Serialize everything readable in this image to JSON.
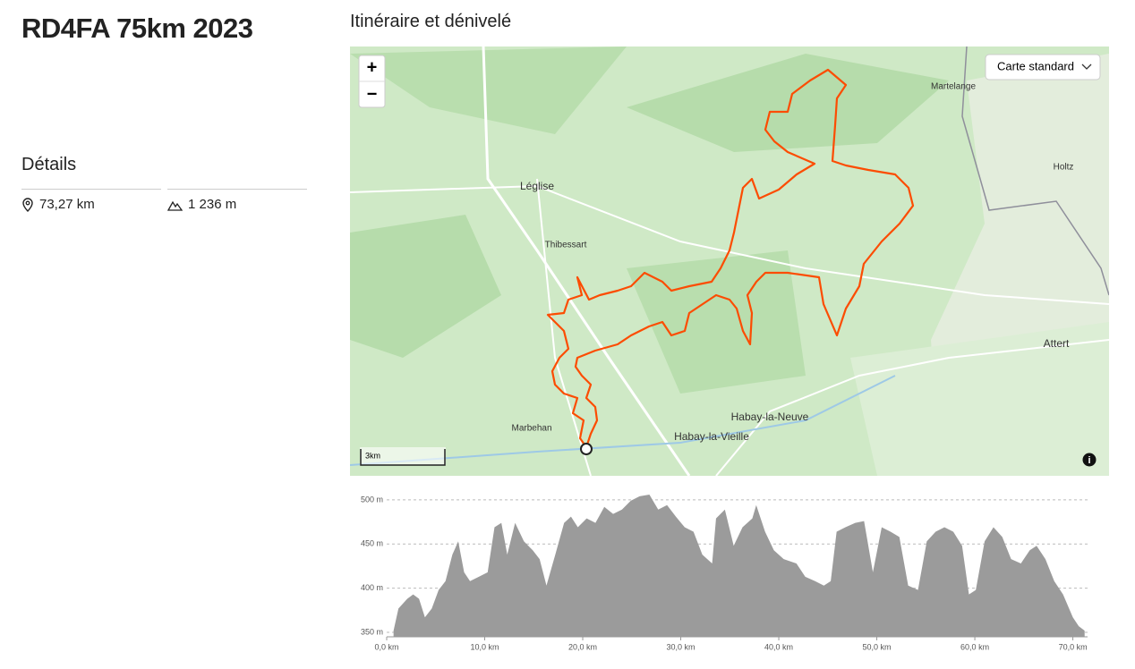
{
  "header": {
    "title": "RD4FA 75km 2023"
  },
  "section_title": "Itinéraire et dénivelé",
  "details": {
    "title": "Détails",
    "distance": "73,27 km",
    "elevation_gain": "1 236 m"
  },
  "map": {
    "zoom_in": "+",
    "zoom_out": "−",
    "layer": "Carte standard",
    "scale": "3km",
    "places": [
      "Léglise",
      "Thibessart",
      "Marbehan",
      "Habay-la-Neuve",
      "Habay-la-Vieille",
      "Martelange",
      "Holtz",
      "Attert"
    ]
  },
  "chart_data": {
    "type": "area",
    "color": "#9b9b9b",
    "x": [
      0.7,
      1.2,
      2.1,
      2.7,
      3.3,
      3.9,
      4.6,
      5.3,
      6.0,
      6.7,
      7.3,
      7.9,
      8.5,
      9.4,
      10.3,
      11.0,
      11.7,
      12.3,
      13.1,
      14.0,
      14.9,
      15.6,
      16.3,
      17.2,
      18.1,
      18.8,
      19.5,
      20.4,
      21.3,
      22.2,
      23.1,
      24.0,
      24.9,
      25.8,
      26.8,
      27.7,
      28.6,
      29.5,
      30.4,
      31.3,
      32.2,
      33.2,
      33.6,
      34.5,
      35.4,
      36.3,
      37.3,
      37.7,
      38.6,
      39.5,
      40.5,
      41.8,
      42.7,
      43.7,
      44.6,
      45.3,
      45.9,
      46.8,
      47.8,
      48.7,
      49.6,
      50.5,
      51.4,
      52.3,
      53.2,
      54.2,
      55.1,
      56.0,
      56.9,
      57.8,
      58.7,
      59.4,
      60.1,
      61.0,
      61.9,
      62.8,
      63.7,
      64.7,
      65.6,
      66.3,
      67.2,
      68.1,
      69.0,
      70.0,
      70.6,
      71.2
    ],
    "values": [
      352,
      377,
      388,
      393,
      388,
      367,
      377,
      398,
      408,
      438,
      453,
      418,
      408,
      413,
      418,
      469,
      474,
      438,
      474,
      453,
      443,
      433,
      403,
      438,
      474,
      481,
      469,
      479,
      474,
      492,
      484,
      489,
      499,
      504,
      506,
      489,
      494,
      481,
      469,
      464,
      438,
      428,
      479,
      489,
      448,
      469,
      479,
      494,
      464,
      443,
      433,
      428,
      413,
      408,
      403,
      408,
      464,
      469,
      474,
      476,
      418,
      469,
      464,
      458,
      403,
      398,
      453,
      464,
      469,
      464,
      448,
      393,
      398,
      453,
      469,
      458,
      433,
      428,
      443,
      448,
      433,
      408,
      393,
      367,
      357,
      352
    ],
    "xlim": [
      0,
      71.5
    ],
    "ylim": [
      345,
      510
    ],
    "xticks": [
      {
        "value": 0,
        "label": "0,0 km"
      },
      {
        "value": 10,
        "label": "10,0 km"
      },
      {
        "value": 20,
        "label": "20,0 km"
      },
      {
        "value": 30,
        "label": "30,0 km"
      },
      {
        "value": 40,
        "label": "40,0 km"
      },
      {
        "value": 50,
        "label": "50,0 km"
      },
      {
        "value": 60,
        "label": "60,0 km"
      },
      {
        "value": 70,
        "label": "70,0 km"
      }
    ],
    "yticks": [
      {
        "value": 350,
        "label": "350 m"
      },
      {
        "value": 400,
        "label": "400 m"
      },
      {
        "value": 450,
        "label": "450 m"
      },
      {
        "value": 500,
        "label": "500 m"
      }
    ],
    "grid": true
  }
}
